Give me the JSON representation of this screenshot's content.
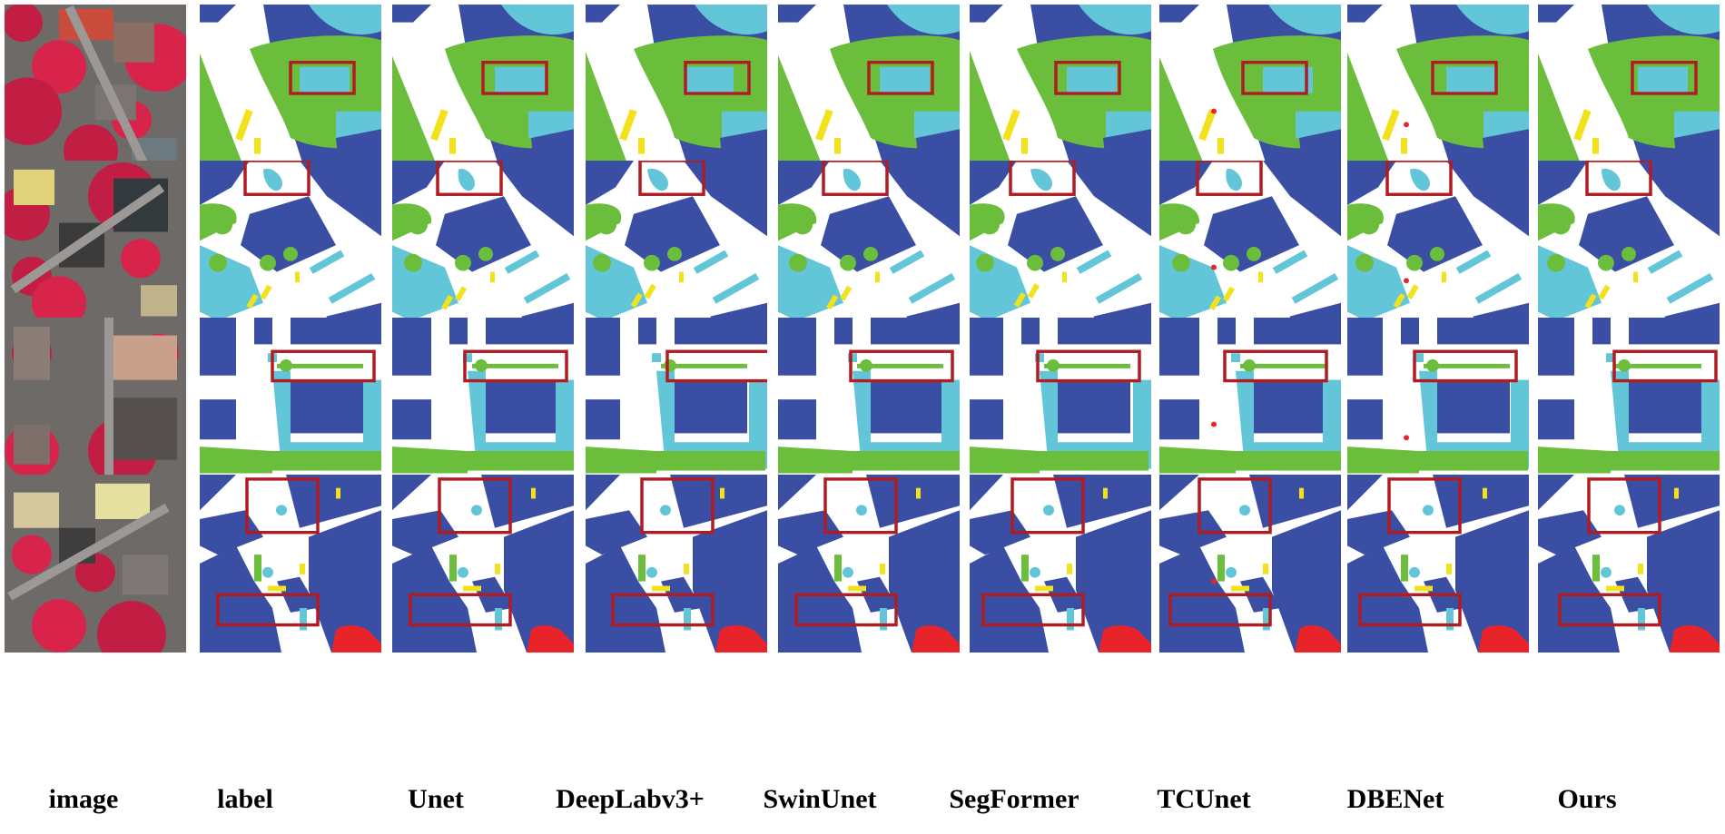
{
  "columns": [
    {
      "key": "image",
      "label": "image"
    },
    {
      "key": "label",
      "label": "label"
    },
    {
      "key": "unet",
      "label": "Unet"
    },
    {
      "key": "deeplab",
      "label": "DeepLabv3+"
    },
    {
      "key": "swinunet",
      "label": "SwinUnet"
    },
    {
      "key": "segformer",
      "label": "SegFormer"
    },
    {
      "key": "tcunet",
      "label": "TCUnet"
    },
    {
      "key": "dbenet",
      "label": "DBENet"
    },
    {
      "key": "ours",
      "label": "Ours"
    }
  ],
  "rows": 4,
  "class_colors": {
    "impervious_surface": "#ffffff",
    "building": "#3a4fa3",
    "low_vegetation": "#62c6d8",
    "tree": "#6bbd3c",
    "car": "#f2e21b",
    "clutter": "#e8232a"
  },
  "highlight_box_color": "#b01c22"
}
